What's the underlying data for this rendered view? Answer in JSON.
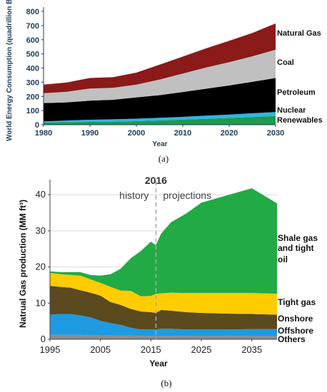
{
  "chart_data": [
    {
      "type": "area",
      "stacked": true,
      "ylabel": "World Energy Consumption (quadrillion BTU)",
      "xlabel": "Year",
      "xlim": [
        1980,
        2030
      ],
      "ylim": [
        0,
        800
      ],
      "xticks": [
        "1980",
        "1990",
        "2000",
        "2010",
        "2020",
        "2030"
      ],
      "yticks": [
        "0",
        "100",
        "200",
        "300",
        "400",
        "500",
        "600",
        "700",
        "800"
      ],
      "grid": false,
      "x": [
        1980,
        1985,
        1990,
        1995,
        2000,
        2005,
        2010,
        2015,
        2020,
        2025,
        2030
      ],
      "series": [
        {
          "name": "Renewables",
          "color": "#1e9a4a",
          "values": [
            15,
            18,
            20,
            22,
            25,
            30,
            36,
            42,
            48,
            55,
            62
          ]
        },
        {
          "name": "Nuclear",
          "color": "#2bb6e8",
          "values": [
            8,
            12,
            15,
            16,
            18,
            19,
            20,
            22,
            24,
            26,
            28
          ]
        },
        {
          "name": "Petroleum",
          "color": "#000000",
          "values": [
            130,
            128,
            135,
            138,
            150,
            160,
            175,
            190,
            205,
            222,
            240
          ]
        },
        {
          "name": "Coal",
          "color": "#c0c0c0",
          "values": [
            70,
            75,
            85,
            85,
            90,
            110,
            130,
            150,
            165,
            180,
            200
          ]
        },
        {
          "name": "Natural Gas",
          "color": "#8b1a1a",
          "values": [
            60,
            65,
            75,
            75,
            85,
            105,
            120,
            135,
            150,
            165,
            185
          ]
        }
      ],
      "caption": "(a)"
    },
    {
      "type": "area",
      "stacked": true,
      "ylabel": "Natrual Gas production (MM ft³)",
      "xlabel": "Year",
      "xlim": [
        1995,
        2040
      ],
      "ylim": [
        0,
        43
      ],
      "xticks": [
        "1995",
        "2005",
        "2015",
        "2025",
        "2035"
      ],
      "yticks": [
        "0",
        "10",
        "20",
        "30",
        "40"
      ],
      "grid": true,
      "annotations": {
        "year": "2016",
        "left": "history",
        "right": "projections"
      },
      "x": [
        1995,
        1997,
        1999,
        2001,
        2003,
        2005,
        2007,
        2009,
        2011,
        2013,
        2015,
        2016,
        2017,
        2019,
        2022,
        2025,
        2030,
        2035,
        2040
      ],
      "series": [
        {
          "name": "Others",
          "color": "#8c8c8c",
          "values": [
            1.2,
            1.2,
            1.2,
            1.2,
            1.1,
            1.1,
            1.0,
            1.0,
            1.0,
            0.9,
            0.9,
            0.9,
            0.9,
            0.9,
            0.9,
            0.9,
            0.9,
            0.9,
            0.9
          ]
        },
        {
          "name": "Offshore",
          "color": "#1e9ae0",
          "values": [
            5.6,
            5.8,
            5.8,
            5.4,
            5.0,
            4.0,
            3.5,
            3.0,
            2.2,
            1.8,
            1.8,
            1.8,
            2.0,
            2.0,
            1.8,
            1.8,
            1.8,
            1.9,
            1.9
          ]
        },
        {
          "name": "Onshore",
          "color": "#5a4a1e",
          "values": [
            8.0,
            7.5,
            7.3,
            7.0,
            6.8,
            7.0,
            5.8,
            5.5,
            5.2,
            5.0,
            4.8,
            4.6,
            5.2,
            5.0,
            4.8,
            4.6,
            4.4,
            4.2,
            4.0
          ]
        },
        {
          "name": "Tight gas",
          "color": "#ffcc00",
          "values": [
            3.6,
            3.5,
            3.5,
            4.0,
            3.7,
            3.5,
            4.2,
            4.0,
            5.0,
            4.2,
            4.5,
            5.3,
            4.6,
            5.0,
            5.3,
            5.5,
            5.7,
            5.8,
            5.8
          ]
        },
        {
          "name": "Shale gas and tight oil",
          "color": "#22aa44",
          "values": [
            0.4,
            0.6,
            0.8,
            1.0,
            1.2,
            2.0,
            3.5,
            6.0,
            9.0,
            12.5,
            15.0,
            13.5,
            16.5,
            19.5,
            22.0,
            25.0,
            27.0,
            29.0,
            25.0
          ]
        }
      ],
      "caption": "(b)"
    }
  ]
}
